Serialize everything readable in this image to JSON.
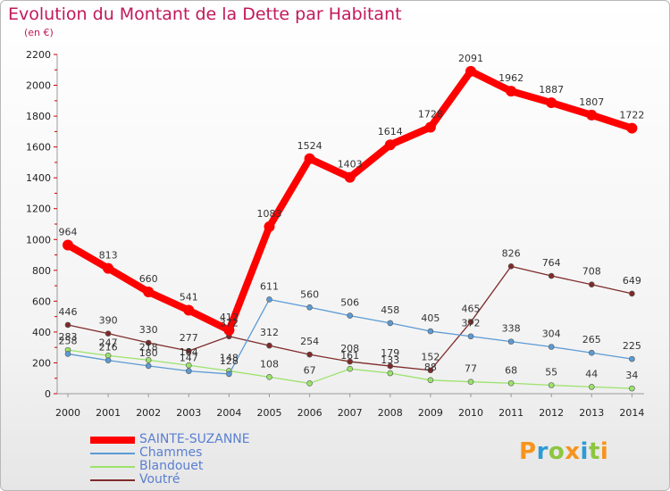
{
  "title": "Evolution du Montant de la Dette par Habitant",
  "subtitle": "(en €)",
  "logo": "Proxiti",
  "chart_data": {
    "type": "line",
    "categories": [
      "2000",
      "2001",
      "2002",
      "2003",
      "2004",
      "2005",
      "2006",
      "2007",
      "2008",
      "2009",
      "2010",
      "2011",
      "2012",
      "2013",
      "2014"
    ],
    "ylim": [
      0,
      2200
    ],
    "yticks": [
      0,
      200,
      400,
      600,
      800,
      1000,
      1200,
      1400,
      1600,
      1800,
      2000,
      2200
    ],
    "grid": false,
    "legend_position": "bottom-left",
    "series": [
      {
        "name": "SAINTE-SUZANNE",
        "color": "#ff0000",
        "values": [
          964,
          813,
          660,
          541,
          412,
          1083,
          1524,
          1403,
          1614,
          1728,
          2091,
          1962,
          1887,
          1807,
          1722
        ]
      },
      {
        "name": "Chammes",
        "color": "#5b9bd5",
        "values": [
          258,
          216,
          180,
          147,
          128,
          611,
          560,
          506,
          458,
          405,
          372,
          338,
          304,
          265,
          225
        ]
      },
      {
        "name": "Blandouet",
        "color": "#9be36b",
        "values": [
          283,
          247,
          218,
          184,
          148,
          108,
          67,
          161,
          133,
          88,
          77,
          68,
          55,
          44,
          34
        ]
      },
      {
        "name": "Voutré",
        "color": "#7f2a2a",
        "values": [
          446,
          390,
          330,
          277,
          372,
          312,
          254,
          208,
          179,
          152,
          465,
          826,
          764,
          708,
          649
        ]
      }
    ]
  }
}
